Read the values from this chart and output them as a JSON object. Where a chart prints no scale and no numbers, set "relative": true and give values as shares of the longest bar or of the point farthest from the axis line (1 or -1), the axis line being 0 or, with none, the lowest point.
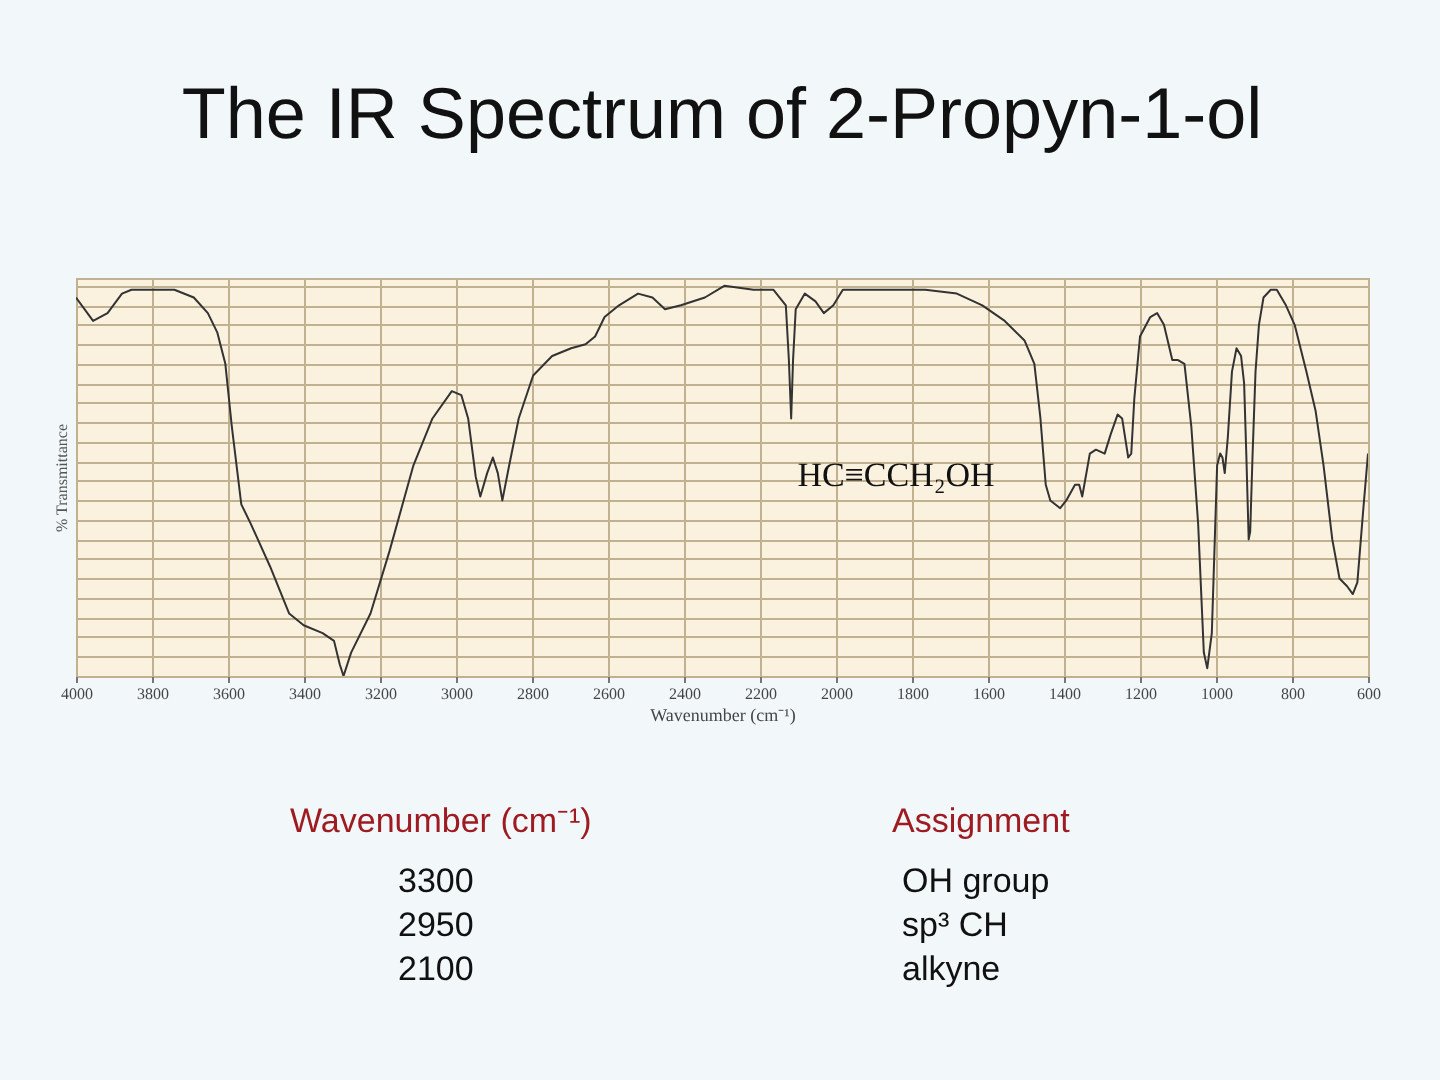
{
  "chart_data": {
    "type": "line",
    "title": "The IR Spectrum of 2-Propyn-1-ol",
    "xlabel": "Wavenumber (cm⁻¹)",
    "ylabel": "% Transmittance",
    "annotations": [
      "HC≡CCH₂OH",
      "Wavenumber (cm⁻¹)",
      "Assignment",
      "3300",
      "OH group",
      "2950",
      "sp³ CH",
      "2100",
      "alkyne"
    ],
    "relative": true,
    "grid": true,
    "xlim": [
      4000,
      600
    ],
    "xticks": [
      4000,
      3800,
      3600,
      3400,
      3200,
      3000,
      2800,
      2600,
      2400,
      2200,
      2000,
      1800,
      1600,
      1400,
      1200,
      1000,
      800,
      600
    ],
    "x": [
      4000,
      3955,
      3917,
      3879,
      3854,
      3804,
      3741,
      3690,
      3653,
      3628,
      3607,
      3590,
      3565,
      3540,
      3489,
      3439,
      3401,
      3351,
      3321,
      3306,
      3296,
      3276,
      3225,
      3175,
      3112,
      3062,
      3011,
      2986,
      2968,
      2948,
      2936,
      2918,
      2903,
      2890,
      2878,
      2860,
      2835,
      2797,
      2747,
      2697,
      2659,
      2634,
      2609,
      2571,
      2521,
      2483,
      2450,
      2408,
      2345,
      2294,
      2217,
      2165,
      2132,
      2124,
      2118,
      2113,
      2106,
      2082,
      2054,
      2032,
      2007,
      1982,
      1898,
      1765,
      1682,
      1615,
      1556,
      1504,
      1478,
      1462,
      1448,
      1436,
      1410,
      1394,
      1371,
      1360,
      1352,
      1332,
      1316,
      1293,
      1277,
      1259,
      1247,
      1231,
      1223,
      1215,
      1200,
      1173,
      1155,
      1137,
      1115,
      1101,
      1083,
      1065,
      1047,
      1032,
      1023,
      1011,
      997,
      989,
      983,
      977,
      969,
      958,
      946,
      934,
      926,
      920,
      914,
      910,
      904,
      896,
      887,
      875,
      856,
      840,
      816,
      793,
      762,
      738,
      717,
      694,
      675,
      655,
      640,
      628,
      613,
      600
    ],
    "series": [
      {
        "color": "#333333",
        "values": [
          0.97,
          0.91,
          0.93,
          0.98,
          0.99,
          0.99,
          0.99,
          0.97,
          0.93,
          0.88,
          0.8,
          0.64,
          0.44,
          0.39,
          0.28,
          0.16,
          0.13,
          0.11,
          0.09,
          0.03,
          0.0,
          0.06,
          0.16,
          0.32,
          0.54,
          0.66,
          0.73,
          0.72,
          0.66,
          0.51,
          0.46,
          0.52,
          0.56,
          0.52,
          0.45,
          0.54,
          0.66,
          0.77,
          0.82,
          0.84,
          0.85,
          0.87,
          0.92,
          0.95,
          0.98,
          0.97,
          0.94,
          0.95,
          0.97,
          1.0,
          0.99,
          0.99,
          0.95,
          0.81,
          0.66,
          0.81,
          0.94,
          0.98,
          0.96,
          0.93,
          0.95,
          0.99,
          0.99,
          0.99,
          0.98,
          0.95,
          0.91,
          0.86,
          0.8,
          0.66,
          0.49,
          0.45,
          0.43,
          0.45,
          0.49,
          0.49,
          0.46,
          0.57,
          0.58,
          0.57,
          0.62,
          0.67,
          0.66,
          0.56,
          0.57,
          0.71,
          0.87,
          0.92,
          0.93,
          0.9,
          0.81,
          0.81,
          0.8,
          0.64,
          0.39,
          0.06,
          0.02,
          0.11,
          0.54,
          0.57,
          0.56,
          0.52,
          0.61,
          0.78,
          0.84,
          0.82,
          0.75,
          0.56,
          0.35,
          0.37,
          0.56,
          0.78,
          0.9,
          0.97,
          0.99,
          0.99,
          0.95,
          0.9,
          0.78,
          0.68,
          0.54,
          0.35,
          0.25,
          0.23,
          0.21,
          0.24,
          0.42,
          0.57
        ]
      }
    ]
  }
}
